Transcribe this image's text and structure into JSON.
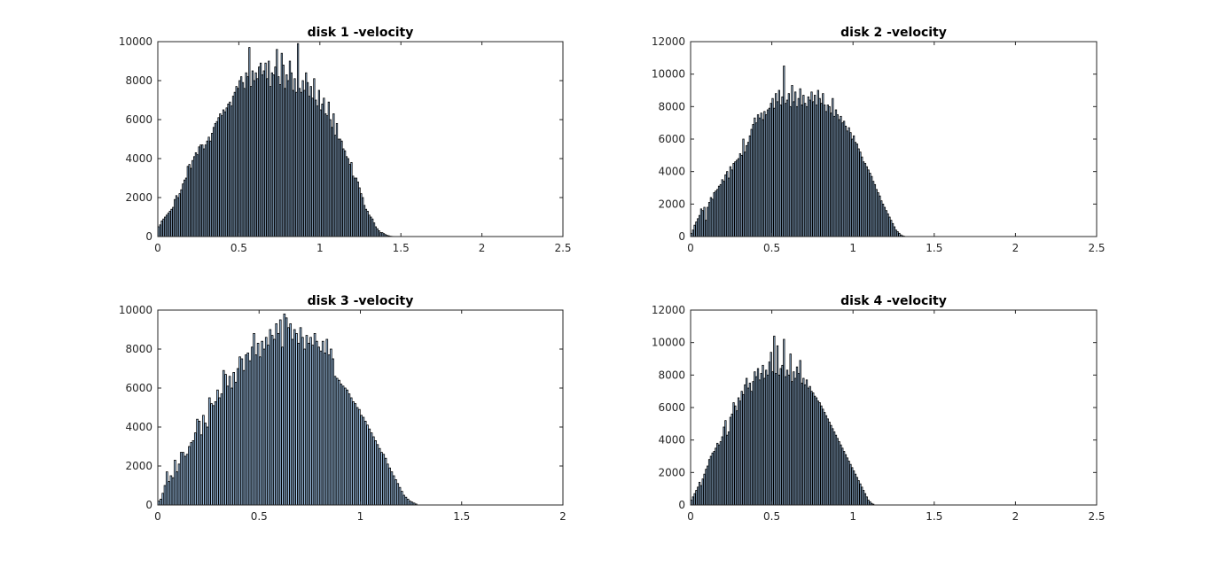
{
  "chart_data": [
    {
      "type": "bar",
      "title": "disk 1 -velocity",
      "xlabel": "",
      "ylabel": "",
      "xlim": [
        0,
        2.5
      ],
      "ylim": [
        0,
        10000
      ],
      "xticks": [
        "0",
        "0.5",
        "1",
        "1.5",
        "2",
        "2.5"
      ],
      "yticks": [
        "0",
        "2000",
        "4000",
        "6000",
        "8000",
        "10000"
      ],
      "bar_color": "#a6cbf0",
      "edge_color": "#000000",
      "bin_width": 0.01,
      "x_start": 0.005,
      "values": [
        500,
        600,
        800,
        900,
        1000,
        1100,
        1200,
        1300,
        1400,
        1500,
        1900,
        2100,
        2000,
        2200,
        2400,
        2700,
        2900,
        3000,
        3600,
        3700,
        3500,
        3900,
        4100,
        4300,
        4200,
        4600,
        4700,
        4700,
        4500,
        4700,
        4900,
        5100,
        4900,
        5300,
        5600,
        5800,
        5900,
        6100,
        6300,
        6200,
        6500,
        6400,
        6600,
        6800,
        6900,
        6700,
        7200,
        7400,
        7700,
        7600,
        8000,
        8200,
        7900,
        7600,
        8400,
        8200,
        9700,
        7700,
        8500,
        8000,
        8400,
        8100,
        8700,
        8900,
        8300,
        8500,
        8900,
        8100,
        9000,
        7700,
        8400,
        8300,
        8700,
        9600,
        8200,
        7800,
        9400,
        8800,
        7600,
        8300,
        8000,
        9000,
        8400,
        7500,
        8100,
        7400,
        9900,
        7600,
        7400,
        8000,
        7500,
        8400,
        7900,
        7200,
        7700,
        7100,
        8100,
        7000,
        6700,
        7500,
        6500,
        6800,
        7100,
        6300,
        6200,
        6900,
        6000,
        5600,
        6300,
        5200,
        5800,
        5000,
        5000,
        4900,
        4500,
        4400,
        4100,
        4000,
        3700,
        3800,
        3100,
        3000,
        3000,
        2800,
        2500,
        2200,
        2000,
        1600,
        1400,
        1300,
        1100,
        1000,
        900,
        700,
        500,
        400,
        300,
        200,
        200,
        150,
        100,
        60,
        40,
        20,
        10,
        5,
        0,
        0,
        0,
        0,
        0,
        0,
        0,
        0,
        0,
        0,
        0,
        0,
        0,
        0,
        0,
        0,
        0,
        0,
        0,
        0,
        0,
        0,
        0,
        0,
        0,
        0,
        0,
        0,
        0,
        0,
        0,
        0,
        0,
        0,
        0,
        0,
        0,
        0,
        0,
        0,
        0,
        0,
        0,
        0,
        0,
        0,
        0,
        0,
        0,
        0,
        0,
        0,
        0,
        0,
        0,
        0,
        0,
        0,
        0,
        0,
        0,
        0,
        0,
        0,
        0,
        0,
        0,
        0,
        0,
        0,
        0,
        0,
        0,
        0,
        0,
        0,
        0,
        0,
        0,
        0,
        0,
        0,
        0,
        0,
        0,
        0,
        0,
        0,
        0,
        0,
        0,
        0,
        0,
        0,
        0,
        0,
        0,
        0,
        0,
        0,
        0,
        0,
        0,
        0,
        0,
        0,
        0,
        0,
        0
      ]
    },
    {
      "type": "bar",
      "title": "disk 2 -velocity",
      "xlabel": "",
      "ylabel": "",
      "xlim": [
        0,
        2.5
      ],
      "ylim": [
        0,
        12000
      ],
      "xticks": [
        "0",
        "0.5",
        "1",
        "1.5",
        "2",
        "2.5"
      ],
      "yticks": [
        "0",
        "2000",
        "4000",
        "6000",
        "8000",
        "10000",
        "12000"
      ],
      "bar_color": "#a6cbf0",
      "edge_color": "#000000",
      "bin_width": 0.01,
      "x_start": 0.005,
      "values": [
        200,
        400,
        700,
        900,
        1100,
        1300,
        1700,
        1600,
        1800,
        1000,
        1800,
        2100,
        2400,
        2300,
        2700,
        2800,
        2900,
        3100,
        3200,
        3500,
        3400,
        3800,
        4000,
        3600,
        4300,
        4100,
        4500,
        4600,
        4700,
        4800,
        5100,
        5000,
        6000,
        5200,
        5600,
        5800,
        6200,
        6600,
        6900,
        7300,
        7000,
        7500,
        7300,
        7600,
        7200,
        7700,
        7500,
        7800,
        7900,
        8200,
        8500,
        7900,
        8800,
        8300,
        9000,
        8100,
        8600,
        10500,
        8200,
        8400,
        8800,
        8000,
        9300,
        8300,
        8900,
        8000,
        8500,
        9100,
        8100,
        8700,
        8200,
        8000,
        8600,
        8400,
        8900,
        8300,
        8700,
        8100,
        9000,
        8500,
        8200,
        8800,
        8100,
        7700,
        8100,
        8000,
        7600,
        8500,
        7400,
        7800,
        7500,
        7200,
        7400,
        7000,
        7100,
        6800,
        6500,
        6700,
        6400,
        6000,
        6200,
        5800,
        5700,
        5400,
        5200,
        4900,
        4600,
        4500,
        4300,
        4100,
        3900,
        3700,
        3400,
        3200,
        2900,
        2700,
        2500,
        2200,
        2000,
        1800,
        1600,
        1400,
        1200,
        1000,
        800,
        600,
        400,
        300,
        200,
        100,
        50,
        20,
        0,
        0,
        0,
        0,
        0,
        0,
        0,
        0,
        0,
        0,
        0,
        0,
        0,
        0,
        0,
        0,
        0,
        0,
        0,
        0,
        0,
        0,
        0,
        0,
        0,
        0,
        0,
        0,
        0,
        0,
        0,
        0,
        0,
        0,
        0,
        0,
        0,
        0,
        0,
        0,
        0,
        0,
        0,
        0,
        0,
        0,
        0,
        0,
        0,
        0,
        0,
        0,
        0,
        0,
        0,
        0,
        0,
        0,
        0,
        0,
        0,
        0,
        0,
        0,
        0,
        0,
        0,
        0,
        0,
        0,
        0,
        0,
        0,
        0,
        0,
        0,
        0,
        0,
        0,
        0,
        0,
        0,
        0,
        0,
        0,
        0,
        0,
        0,
        0,
        0,
        0,
        0,
        0,
        0,
        0,
        0,
        0,
        0,
        0,
        0,
        0,
        0,
        0,
        0,
        0,
        0,
        0,
        0,
        0,
        0,
        0,
        0,
        0,
        0,
        0,
        0,
        0,
        0,
        0,
        0,
        0,
        0,
        0,
        0,
        0,
        0,
        0,
        0,
        0,
        0,
        0,
        0,
        0,
        0,
        0,
        0,
        0,
        0,
        0,
        0
      ]
    },
    {
      "type": "bar",
      "title": "disk 3 -velocity",
      "xlabel": "",
      "ylabel": "",
      "xlim": [
        0,
        2
      ],
      "ylim": [
        0,
        10000
      ],
      "xticks": [
        "0",
        "0.5",
        "1",
        "1.5",
        "2"
      ],
      "yticks": [
        "0",
        "2000",
        "4000",
        "6000",
        "8000",
        "10000"
      ],
      "bar_color": "#a6cbf0",
      "edge_color": "#000000",
      "bin_width": 0.01,
      "x_start": 0.005,
      "values": [
        200,
        300,
        600,
        1000,
        1700,
        1200,
        1500,
        1400,
        2300,
        1700,
        2100,
        2700,
        2700,
        2500,
        2600,
        3000,
        3200,
        3300,
        3700,
        4400,
        4300,
        3600,
        4600,
        4200,
        4000,
        5500,
        5200,
        5100,
        5300,
        5900,
        5500,
        5700,
        6900,
        6700,
        6100,
        6600,
        6000,
        6800,
        6300,
        7000,
        7600,
        7500,
        6900,
        7700,
        7800,
        7400,
        8100,
        8800,
        7700,
        8300,
        7600,
        8400,
        8000,
        8600,
        8200,
        9000,
        8700,
        8500,
        9300,
        8800,
        9500,
        8100,
        9800,
        9600,
        9100,
        9300,
        8500,
        9000,
        8800,
        8300,
        9100,
        8600,
        8000,
        8700,
        8300,
        8600,
        8200,
        8800,
        8400,
        8100,
        7900,
        8400,
        7800,
        8500,
        7700,
        8000,
        7500,
        6600,
        6500,
        6400,
        6200,
        6100,
        6000,
        5900,
        5700,
        5500,
        5300,
        5200,
        5000,
        4900,
        4600,
        4500,
        4300,
        4100,
        3900,
        3700,
        3500,
        3300,
        3100,
        2900,
        2700,
        2600,
        2400,
        2100,
        1900,
        1700,
        1500,
        1300,
        1100,
        900,
        700,
        500,
        400,
        300,
        200,
        150,
        100,
        50,
        0,
        0,
        0,
        0,
        0,
        0,
        0,
        0,
        0,
        0,
        0,
        0,
        0,
        0,
        0,
        0,
        0,
        0,
        0,
        0,
        0,
        0,
        0,
        0,
        0,
        0,
        0,
        0,
        0,
        0,
        0,
        0,
        0,
        0,
        0,
        0,
        0,
        0,
        0,
        0,
        0,
        0,
        0,
        0,
        0,
        0,
        0,
        0,
        0,
        0,
        0,
        0,
        0,
        0,
        0,
        0,
        0,
        0,
        0,
        0,
        0,
        0,
        0,
        0,
        0,
        0,
        0,
        0,
        0,
        0,
        0,
        0,
        0,
        0,
        0,
        0,
        0,
        0,
        0,
        0,
        0
      ]
    },
    {
      "type": "bar",
      "title": "disk 4 -velocity",
      "xlabel": "",
      "ylabel": "",
      "xlim": [
        0,
        2.5
      ],
      "ylim": [
        0,
        12000
      ],
      "xticks": [
        "0",
        "0.5",
        "1",
        "1.5",
        "2",
        "2.5"
      ],
      "yticks": [
        "0",
        "2000",
        "4000",
        "6000",
        "8000",
        "10000",
        "12000"
      ],
      "bar_color": "#a6cbf0",
      "edge_color": "#000000",
      "bin_width": 0.01,
      "x_start": 0.005,
      "values": [
        300,
        500,
        700,
        900,
        1100,
        1400,
        1200,
        1600,
        1900,
        2200,
        2400,
        2800,
        3000,
        3200,
        3300,
        3500,
        3800,
        3700,
        3900,
        4200,
        4800,
        5200,
        4300,
        4500,
        5400,
        5600,
        6300,
        6100,
        5800,
        6600,
        6400,
        7000,
        6800,
        7400,
        7800,
        7200,
        7500,
        7000,
        7600,
        8200,
        7900,
        8400,
        7700,
        8100,
        8600,
        7800,
        8300,
        8000,
        8800,
        9400,
        8200,
        10400,
        8100,
        9800,
        8000,
        8400,
        8600,
        10200,
        7900,
        8300,
        8000,
        9300,
        7600,
        8200,
        7800,
        8500,
        8100,
        8900,
        7500,
        7800,
        7400,
        7700,
        7200,
        7300,
        7000,
        6900,
        6700,
        6600,
        6400,
        6300,
        6100,
        5900,
        5700,
        5500,
        5300,
        5100,
        4900,
        4700,
        4500,
        4300,
        4100,
        3900,
        3700,
        3500,
        3300,
        3100,
        2900,
        2700,
        2500,
        2300,
        2100,
        1900,
        1700,
        1500,
        1300,
        1100,
        900,
        700,
        500,
        300,
        200,
        100,
        50,
        0,
        0,
        0,
        0,
        0,
        0,
        0,
        0,
        0,
        0,
        0,
        0,
        0,
        0,
        0,
        0,
        0,
        0,
        0,
        0,
        0,
        0,
        0,
        0,
        0,
        0,
        0,
        0,
        0,
        0,
        0,
        0,
        0,
        0,
        0,
        0,
        0,
        0,
        0,
        0,
        0,
        0,
        0,
        0,
        0,
        0,
        0,
        0,
        0,
        0,
        0,
        0,
        0,
        0,
        0,
        0,
        0,
        0,
        0,
        0,
        0,
        0,
        0,
        0,
        0,
        0,
        0,
        0,
        0,
        0,
        0,
        0,
        0,
        0,
        0,
        0,
        0,
        0,
        0,
        0,
        0,
        0,
        0,
        0,
        0,
        0,
        0,
        0,
        0,
        0,
        0,
        0,
        0,
        0,
        0,
        0,
        0,
        0,
        0,
        0,
        0,
        0,
        0,
        0,
        0,
        0,
        0,
        0,
        0,
        0,
        0,
        0,
        0,
        0,
        0,
        0,
        0,
        0,
        0,
        0,
        0,
        0,
        0,
        0,
        0,
        0,
        0,
        0,
        0,
        0,
        0,
        0,
        0,
        0,
        0,
        0,
        0,
        0,
        0,
        0,
        0,
        0,
        0
      ]
    }
  ]
}
